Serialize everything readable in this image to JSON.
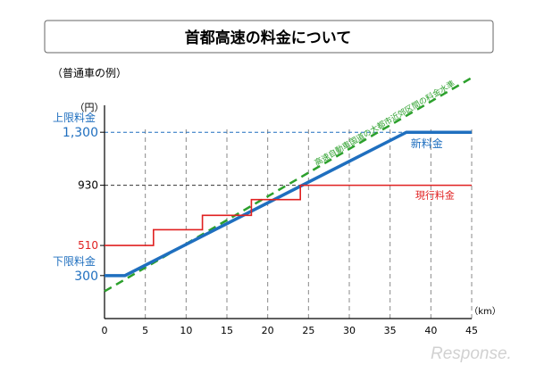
{
  "chart_data": {
    "type": "line",
    "title": "首都高速の料金について",
    "subtitle": "（普通車の例）",
    "ylabel": "（円）",
    "xlabel": "（km）",
    "xlim": [
      0,
      45
    ],
    "ylim": [
      0,
      1600
    ],
    "x_ticks": [
      "0",
      "5",
      "10",
      "15",
      "20",
      "25",
      "30",
      "35",
      "40",
      "45"
    ],
    "y_ticks": [
      {
        "value": 1300,
        "label": "1,300",
        "color": "#1f6fbf"
      },
      {
        "value": 930,
        "label": "930",
        "color": "#000000"
      },
      {
        "value": 510,
        "label": "510",
        "color": "#e02020"
      },
      {
        "value": 300,
        "label": "300",
        "color": "#1f6fbf"
      }
    ],
    "y_caps": [
      {
        "value": 1300,
        "text": "上限料金"
      },
      {
        "value": 300,
        "text": "下限料金"
      }
    ],
    "series": [
      {
        "name": "新料金",
        "color": "#1f6fbf",
        "x": [
          0,
          2.5,
          37,
          45
        ],
        "y": [
          300,
          300,
          1300,
          1300
        ]
      },
      {
        "name": "現行料金",
        "color": "#e02020",
        "x": [
          0,
          6,
          6,
          12,
          12,
          18,
          18,
          24,
          24,
          45
        ],
        "y": [
          510,
          510,
          620,
          620,
          720,
          720,
          830,
          830,
          930,
          930
        ]
      }
    ],
    "reference_line": {
      "name": "高速自動車国道の大都市近郊区間の料金水準",
      "color": "#2ca02c",
      "x": [
        0,
        45
      ],
      "y": [
        190,
        1680
      ]
    },
    "grid": "dashed vertical guides at 5 km steps"
  }
}
